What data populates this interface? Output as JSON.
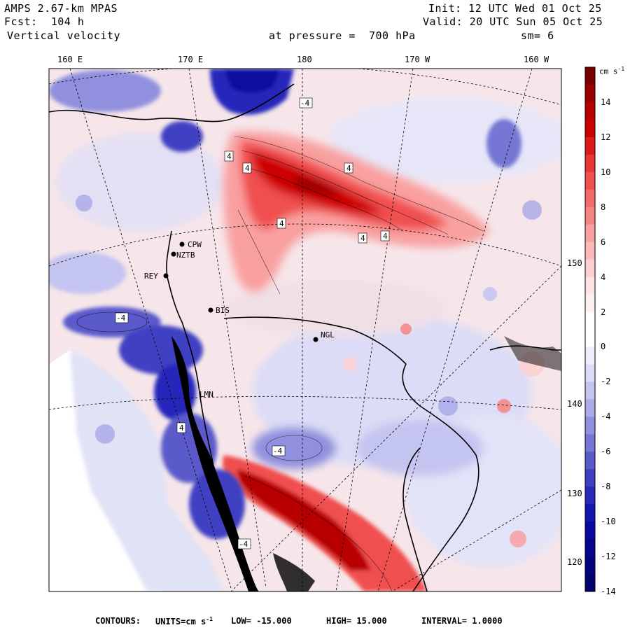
{
  "header": {
    "model": "AMPS 2.67-km MPAS",
    "fcst": "Fcst:  104 h",
    "field": "Vertical velocity",
    "init": "Init: 12 UTC Wed 01 Oct 25",
    "valid": "Valid: 20 UTC Sun 05 Oct 25",
    "level": "at pressure =  700 hPa",
    "smooth": "sm= 6"
  },
  "top_ticks": [
    "160 E",
    "170 E",
    "180",
    "170 W",
    "160 W"
  ],
  "right_ticks": [
    "150 W",
    "140 W",
    "130 W",
    "120 W"
  ],
  "colorbar": {
    "units_label": "cm s",
    "units_exp": "-1",
    "labels": [
      "14",
      "12",
      "10",
      "8",
      "6",
      "4",
      "2",
      "0",
      "-2",
      "-4",
      "-6",
      "-8",
      "-10",
      "-12",
      "-14"
    ],
    "colors": [
      "#7a0000",
      "#9b0000",
      "#b80000",
      "#cc0000",
      "#dc1a1a",
      "#e83535",
      "#f05050",
      "#f56a6a",
      "#f78585",
      "#f9a0a0",
      "#fbb9b9",
      "#fcd0d0",
      "#fde3e3",
      "#fff0f0",
      "#ffffff",
      "#ffffff",
      "#eeeeff",
      "#dcdcf8",
      "#c4c4f0",
      "#ababe8",
      "#9090de",
      "#7676d4",
      "#5a5acb",
      "#3f3fc2",
      "#2828bb",
      "#1515b0",
      "#0a0aa0",
      "#050590",
      "#030380",
      "#020270"
    ]
  },
  "stations": [
    "CPW",
    "NZTB",
    "REY",
    "BIS",
    "NGL",
    "LMN"
  ],
  "contour_labels": [
    "4",
    "4",
    "4",
    "4",
    "4",
    "4",
    "4",
    "-4",
    "-4",
    "-4",
    "-4"
  ],
  "footer": {
    "contours": "CONTOURS:",
    "units": "UNITS=cm s",
    "units_exp": "-1",
    "low": "LOW= -15.000",
    "high": "HIGH=  15.000",
    "interval": "INTERVAL=   1.0000"
  },
  "colors": {
    "land_outline": "#000000",
    "positive": "#e83535",
    "negative": "#2828bb"
  }
}
